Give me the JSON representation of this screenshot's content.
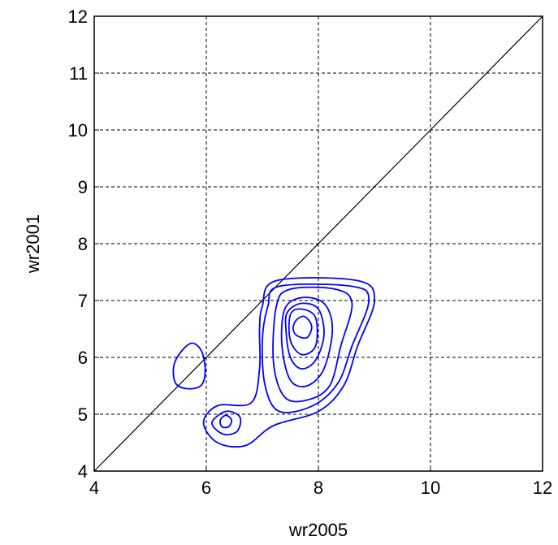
{
  "chart_data": {
    "type": "contour",
    "xlabel": "wr2005",
    "ylabel": "wr2001",
    "xlim": [
      4,
      12
    ],
    "ylim": [
      4,
      12
    ],
    "xticks": [
      4,
      6,
      8,
      10,
      12
    ],
    "yticks": [
      4,
      5,
      6,
      7,
      8,
      9,
      10,
      11,
      12
    ],
    "grid": true,
    "color": "#0000ff",
    "reference_line": {
      "x": [
        4,
        12
      ],
      "y": [
        4,
        12
      ],
      "color": "#000000"
    },
    "contours": [
      {
        "x": [
          5.55,
          5.75,
          5.92,
          5.98,
          5.9,
          5.65,
          5.45,
          5.42
        ],
        "y": [
          6.1,
          6.25,
          6.1,
          5.75,
          5.5,
          5.45,
          5.55,
          5.85
        ]
      },
      {
        "x": [
          7.0,
          7.25,
          8.7,
          9.0,
          8.7,
          8.45,
          8.0,
          7.2,
          6.7,
          6.2,
          5.95,
          6.2,
          6.8,
          6.95,
          6.95
        ],
        "y": [
          6.9,
          7.35,
          7.35,
          7.0,
          6.2,
          5.5,
          5.05,
          4.8,
          4.45,
          4.5,
          4.85,
          5.15,
          5.2,
          5.8,
          6.5
        ]
      },
      {
        "x": [
          7.1,
          7.3,
          8.6,
          8.9,
          8.6,
          8.35,
          7.9,
          7.3,
          7.05,
          7.0
        ],
        "y": [
          6.9,
          7.25,
          7.25,
          7.0,
          6.2,
          5.55,
          5.15,
          5.05,
          5.5,
          6.3
        ]
      },
      {
        "x": [
          7.25,
          7.5,
          8.3,
          8.6,
          8.4,
          8.2,
          7.8,
          7.4,
          7.2
        ],
        "y": [
          6.9,
          7.2,
          7.2,
          6.95,
          6.2,
          5.5,
          5.25,
          5.3,
          5.9
        ]
      },
      {
        "x": [
          7.4,
          7.7,
          8.1,
          8.25,
          8.1,
          7.8,
          7.5,
          7.35
        ],
        "y": [
          6.85,
          7.05,
          6.95,
          6.5,
          5.8,
          5.5,
          5.6,
          6.2
        ]
      },
      {
        "x": [
          7.45,
          7.7,
          8.0,
          8.1,
          7.95,
          7.7,
          7.5,
          7.42
        ],
        "y": [
          6.8,
          6.95,
          6.85,
          6.4,
          5.95,
          5.8,
          6.0,
          6.5
        ]
      },
      {
        "x": [
          7.5,
          7.7,
          7.95,
          7.95,
          7.7,
          7.5
        ],
        "y": [
          6.75,
          6.85,
          6.7,
          6.2,
          6.05,
          6.3
        ]
      },
      {
        "x": [
          7.6,
          7.75,
          7.88,
          7.8,
          7.62,
          7.55
        ],
        "y": [
          6.65,
          6.72,
          6.55,
          6.35,
          6.38,
          6.5
        ]
      },
      {
        "x": [
          6.1,
          6.35,
          6.6,
          6.55,
          6.3
        ],
        "y": [
          4.85,
          5.05,
          4.95,
          4.7,
          4.65
        ]
      },
      {
        "x": [
          6.25,
          6.35,
          6.45,
          6.4,
          6.28
        ],
        "y": [
          4.9,
          4.98,
          4.9,
          4.78,
          4.78
        ]
      }
    ]
  }
}
